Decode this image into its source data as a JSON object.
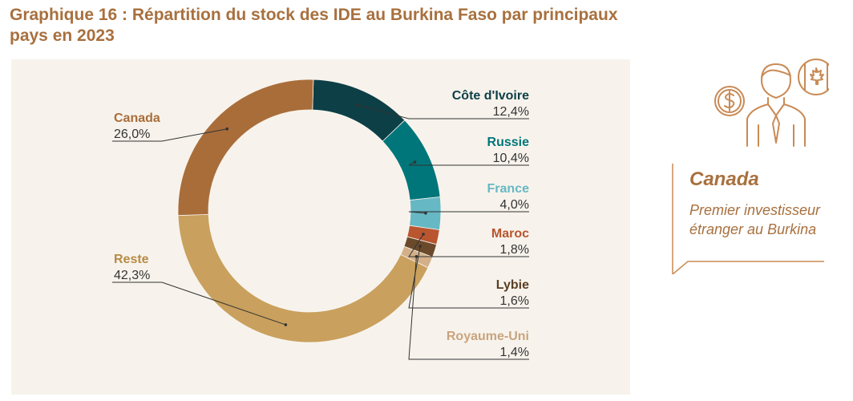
{
  "title": "Graphique 16 : Répartition du stock des IDE au Burkina Faso par principaux pays en 2023",
  "callout": {
    "heading": "Canada",
    "text": "Premier investisseur étranger au Burkina"
  },
  "icons": [
    "dollar-coin-icon",
    "businessman-icon",
    "canada-flag-icon"
  ],
  "chart_data": {
    "type": "pie",
    "donut": true,
    "unit": "%",
    "series": [
      {
        "name": "Côte d'Ivoire",
        "value": 12.4,
        "label": "12,4%",
        "color": "#0d3f47",
        "name_color": "#0d3f47"
      },
      {
        "name": "Russie",
        "value": 10.4,
        "label": "10,4%",
        "color": "#00767a",
        "name_color": "#00767a"
      },
      {
        "name": "France",
        "value": 4.0,
        "label": "4,0%",
        "color": "#66b8c4",
        "name_color": "#66b8c4"
      },
      {
        "name": "Maroc",
        "value": 1.8,
        "label": "1,8%",
        "color": "#b9552f",
        "name_color": "#b9552f"
      },
      {
        "name": "Lybie",
        "value": 1.6,
        "label": "1,6%",
        "color": "#6b4a2b",
        "name_color": "#5a3e24"
      },
      {
        "name": "Royaume-Uni",
        "value": 1.4,
        "label": "1,4%",
        "color": "#d4b08a",
        "name_color": "#c9a47e"
      },
      {
        "name": "Reste",
        "value": 42.3,
        "label": "42,3%",
        "color": "#c9a05d",
        "name_color": "#b88a45"
      },
      {
        "name": "Canada",
        "value": 26.0,
        "label": "26,0%",
        "color": "#a96d3a",
        "name_color": "#a96d3a"
      }
    ]
  }
}
